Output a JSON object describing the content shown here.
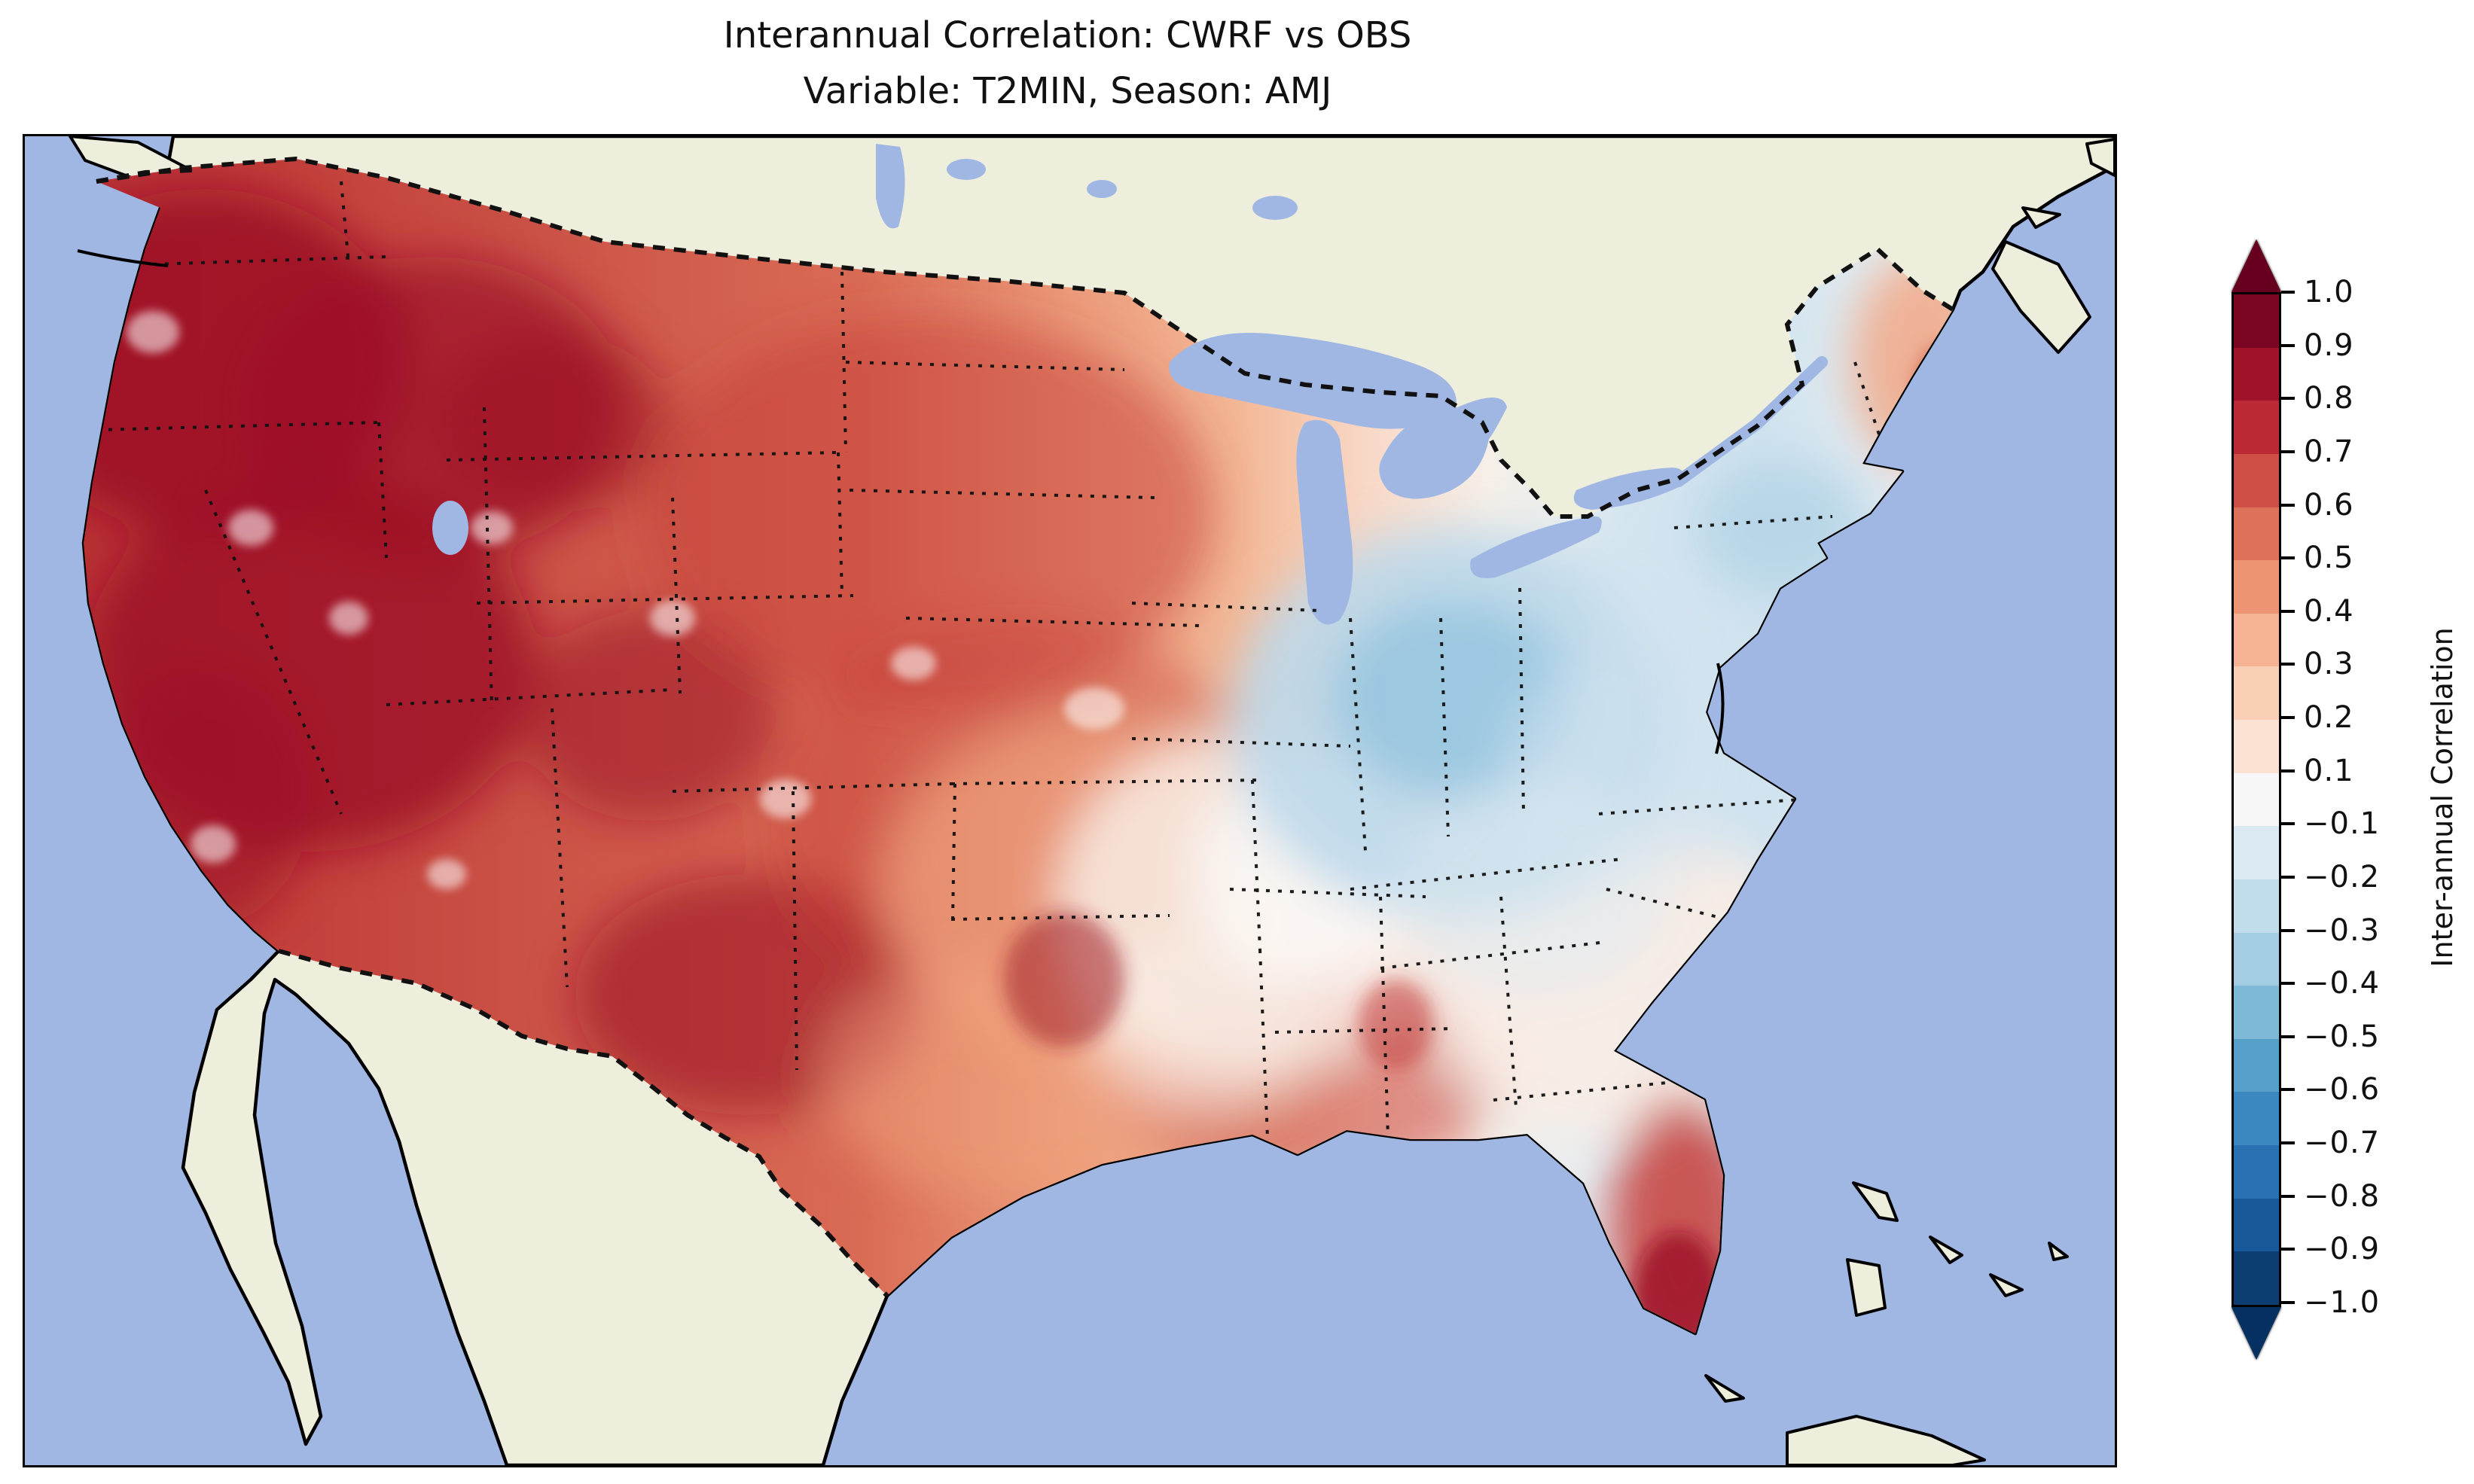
{
  "figure": {
    "title_line1": "Interannual Correlation: CWRF vs OBS",
    "title_line2": "Variable: T2MIN, Season: AMJ"
  },
  "chart_data": {
    "type": "heatmap",
    "title": "Interannual Correlation: CWRF vs OBS",
    "subtitle": "Variable: T2MIN, Season: AMJ",
    "comparison": "CWRF model vs OBS observations",
    "variable": "T2MIN",
    "season": "AMJ",
    "geography": "Filled-contour correlation field over the contiguous United States; beige North America landmass (Canada/Mexico masked), light-blue ocean and Great Lakes, dotted state and national borders, solid black coastlines",
    "colorbar": {
      "label": "Inter-annual Correlation",
      "orientation": "vertical-right",
      "colormap": "RdBu_r (diverging red to blue, reversed)",
      "extend": "both",
      "levels": [
        -1.0,
        -0.9,
        -0.8,
        -0.7,
        -0.6,
        -0.5,
        -0.4,
        -0.3,
        -0.2,
        -0.1,
        0.1,
        0.2,
        0.3,
        0.4,
        0.5,
        0.6,
        0.7,
        0.8,
        0.9,
        1.0
      ],
      "note": "No 0.0 level: a single near-white band spans -0.1 to 0.1",
      "ticks": [
        {
          "label": "1.0",
          "value": 1.0
        },
        {
          "label": "0.9",
          "value": 0.9
        },
        {
          "label": "0.8",
          "value": 0.8
        },
        {
          "label": "0.7",
          "value": 0.7
        },
        {
          "label": "0.6",
          "value": 0.6
        },
        {
          "label": "0.5",
          "value": 0.5
        },
        {
          "label": "0.4",
          "value": 0.4
        },
        {
          "label": "0.3",
          "value": 0.3
        },
        {
          "label": "0.2",
          "value": 0.2
        },
        {
          "label": "0.1",
          "value": 0.1
        },
        {
          "label": "−0.1",
          "value": -0.1
        },
        {
          "label": "−0.2",
          "value": -0.2
        },
        {
          "label": "−0.3",
          "value": -0.3
        },
        {
          "label": "−0.4",
          "value": -0.4
        },
        {
          "label": "−0.5",
          "value": -0.5
        },
        {
          "label": "−0.6",
          "value": -0.6
        },
        {
          "label": "−0.7",
          "value": -0.7
        },
        {
          "label": "−0.8",
          "value": -0.8
        },
        {
          "label": "−0.9",
          "value": -0.9
        },
        {
          "label": "−1.0",
          "value": -1.0
        }
      ],
      "segment_colors_top_to_bottom": [
        "#7a0622",
        "#9f1228",
        "#bb2a34",
        "#cd4e45",
        "#de715a",
        "#ed9475",
        "#f6b393",
        "#fbceb6",
        "#fce2d3",
        "#f7f7f7",
        "#dbeaf2",
        "#c1ddec",
        "#a2cde3",
        "#7eb9d8",
        "#57a0cc",
        "#3b88c0",
        "#2a71b3",
        "#1a5999",
        "#0c3e74"
      ],
      "extend_colors": {
        "above_1": "#67001f",
        "below_-1": "#053061"
      }
    },
    "regional_pattern": [
      {
        "region": "Pacific Northwest (WA, OR, N California)",
        "approx_correlation": "0.7 to 1.0"
      },
      {
        "region": "Great Basin / Nevada / Utah",
        "approx_correlation": "0.7 to 1.0"
      },
      {
        "region": "Northern Rockies (ID, MT, WY)",
        "approx_correlation": "0.6 to 0.9"
      },
      {
        "region": "California coast",
        "approx_correlation": "0.4 to 0.9 with small near-zero pockets"
      },
      {
        "region": "Southwest (AZ, NM) and West Texas",
        "approx_correlation": "0.6 to 0.9"
      },
      {
        "region": "Northern and central Plains (Dakotas to Kansas)",
        "approx_correlation": "0.4 to 0.8"
      },
      {
        "region": "Upper Midwest (MN, WI)",
        "approx_correlation": "0.3 to 0.7"
      },
      {
        "region": "Midwest / Great Lakes (IL, IN, MI, OH)",
        "approx_correlation": "-0.4 to 0.1 (light blue)"
      },
      {
        "region": "Northeast interior (NY, PA, New England)",
        "approx_correlation": "-0.3 to 0.2"
      },
      {
        "region": "Coastal Maine",
        "approx_correlation": "0.3 to 0.6 (red pocket)"
      },
      {
        "region": "Mid-Atlantic and Carolinas",
        "approx_correlation": "-0.2 to 0.2"
      },
      {
        "region": "Lower Mississippi valley / Southeast (MO, AR, TN, MS, AL, GA)",
        "approx_correlation": "0.0 to 0.4"
      },
      {
        "region": "Gulf Coast (TX coast, LA)",
        "approx_correlation": "0.2 to 0.5"
      },
      {
        "region": "Florida peninsula",
        "approx_correlation": "0.6 to 1.0, strongest in south"
      }
    ]
  },
  "colors": {
    "ocean": "#a0b7e4",
    "land": "#eeeedd",
    "coast": "#000000",
    "frame": "#000000",
    "cb_above": "#67001f",
    "cb_below": "#053061"
  }
}
